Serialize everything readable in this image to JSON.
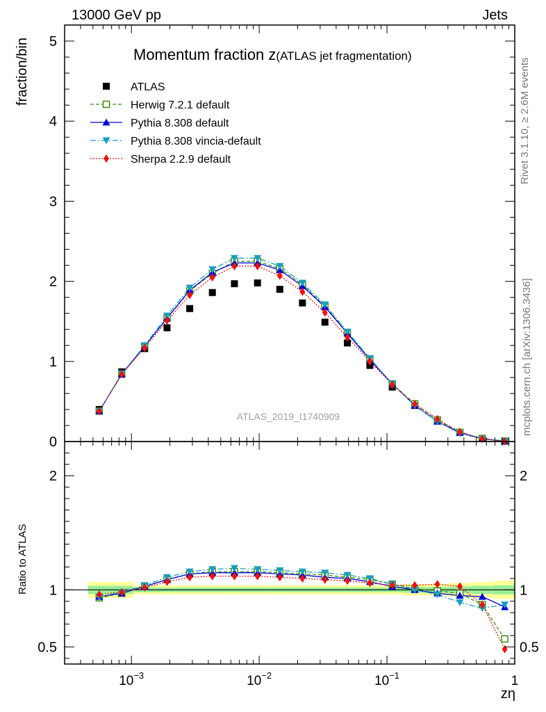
{
  "header": {
    "left_text": "13000 GeV pp",
    "right_text": "Jets"
  },
  "side": {
    "rivet_text": "Rivet 3.1.10, ≥ 2.6M events",
    "mcplots_text": "mcplots.cern.ch [arXiv:1306.3436]"
  },
  "chart_data": {
    "type": "scatter",
    "title_main": "Momentum fraction z",
    "title_sub": "(ATLAS jet fragmentation)",
    "ylabel": "fraction/bin",
    "ratio_ylabel": "Ratio to ATLAS",
    "xlabel": "zη",
    "watermark": "ATLAS_2019_I1740909",
    "xscale": "log",
    "xlim": [
      0.0003,
      1.0
    ],
    "ylim": [
      0,
      5.2
    ],
    "ratio_ylim": [
      0.35,
      2.3
    ],
    "y_ticks": [
      0,
      1,
      2,
      3,
      4,
      5
    ],
    "y_tick_labels": [
      "0",
      "1",
      "2",
      "3",
      "4",
      "5"
    ],
    "ratio_ticks": [
      0.5,
      1,
      2
    ],
    "ratio_tick_labels": [
      "0.5",
      "1",
      "2"
    ],
    "x_ticks": [
      0.001,
      0.01,
      0.1,
      1
    ],
    "x_tick_labels": [
      "10",
      "10",
      "10",
      "1"
    ],
    "x_tick_exponents": [
      "−3",
      "−2",
      "−1",
      ""
    ],
    "x": [
      0.00056,
      0.00084,
      0.00127,
      0.0019,
      0.00286,
      0.0043,
      0.0064,
      0.0097,
      0.0145,
      0.0218,
      0.0327,
      0.049,
      0.0735,
      0.11,
      0.165,
      0.248,
      0.372,
      0.557,
      0.835
    ],
    "series": [
      {
        "name": "ATLAS",
        "style": "data",
        "color": "#000000",
        "values": [
          0.4,
          0.87,
          1.16,
          1.42,
          1.66,
          1.86,
          1.97,
          1.98,
          1.9,
          1.73,
          1.49,
          1.23,
          0.95,
          0.68,
          0.45,
          0.26,
          0.115,
          0.038,
          0.005
        ],
        "ratio": [
          1,
          1,
          1,
          1,
          1,
          1,
          1,
          1,
          1,
          1,
          1,
          1,
          1,
          1,
          1,
          1,
          1,
          1,
          1
        ]
      },
      {
        "name": "Herwig 7.2.1 default",
        "style": "herwig",
        "color": "#3a8f0c",
        "values": [
          0.38,
          0.84,
          1.19,
          1.54,
          1.88,
          2.1,
          2.25,
          2.25,
          2.16,
          1.96,
          1.69,
          1.36,
          1.03,
          0.72,
          0.47,
          0.27,
          0.115,
          0.038,
          0.005
        ],
        "ratio": [
          0.93,
          0.97,
          1.03,
          1.09,
          1.14,
          1.16,
          1.16,
          1.16,
          1.15,
          1.14,
          1.13,
          1.11,
          1.09,
          1.05,
          1.01,
          0.99,
          0.97,
          0.87,
          0.57
        ]
      },
      {
        "name": "Pythia 8.308 default",
        "style": "pythia",
        "color": "#0000dd",
        "values": [
          0.38,
          0.84,
          1.19,
          1.54,
          1.89,
          2.11,
          2.23,
          2.23,
          2.14,
          1.94,
          1.68,
          1.35,
          1.02,
          0.72,
          0.45,
          0.25,
          0.11,
          0.036,
          0.0045
        ],
        "ratio": [
          0.94,
          0.97,
          1.03,
          1.09,
          1.14,
          1.15,
          1.15,
          1.15,
          1.14,
          1.13,
          1.11,
          1.1,
          1.07,
          1.03,
          1.0,
          0.97,
          0.95,
          0.94,
          0.85
        ]
      },
      {
        "name": "Pythia 8.308 vincia-default",
        "style": "vincia",
        "color": "#1a9fc0",
        "values": [
          0.38,
          0.85,
          1.2,
          1.57,
          1.92,
          2.15,
          2.29,
          2.29,
          2.19,
          1.98,
          1.71,
          1.37,
          1.04,
          0.72,
          0.45,
          0.25,
          0.1,
          0.033,
          0.0043
        ],
        "ratio": [
          0.94,
          0.98,
          1.04,
          1.11,
          1.16,
          1.18,
          1.19,
          1.18,
          1.17,
          1.16,
          1.15,
          1.13,
          1.1,
          1.05,
          1.0,
          0.96,
          0.89,
          0.84,
          0.87
        ]
      },
      {
        "name": "Sherpa 2.2.9 default",
        "style": "sherpa",
        "color": "#ee1111",
        "values": [
          0.38,
          0.84,
          1.17,
          1.51,
          1.83,
          2.05,
          2.19,
          2.19,
          2.07,
          1.87,
          1.61,
          1.3,
          1.0,
          0.71,
          0.47,
          0.28,
          0.12,
          0.033,
          0.0025
        ],
        "ratio": [
          0.96,
          0.98,
          1.02,
          1.07,
          1.11,
          1.12,
          1.12,
          1.12,
          1.11,
          1.1,
          1.09,
          1.08,
          1.06,
          1.04,
          1.04,
          1.05,
          1.03,
          0.87,
          0.48
        ]
      }
    ],
    "band_outer": [
      0.07,
      0.07,
      0.04,
      0.04,
      0.04,
      0.04,
      0.04,
      0.04,
      0.04,
      0.04,
      0.04,
      0.04,
      0.04,
      0.04,
      0.05,
      0.05,
      0.06,
      0.07,
      0.08
    ],
    "band_inner": [
      0.035,
      0.035,
      0.02,
      0.02,
      0.02,
      0.02,
      0.02,
      0.02,
      0.02,
      0.02,
      0.02,
      0.02,
      0.02,
      0.02,
      0.025,
      0.025,
      0.03,
      0.035,
      0.04
    ],
    "colors": {
      "band_outer": "#ffff99",
      "band_inner": "#99ee99"
    }
  }
}
